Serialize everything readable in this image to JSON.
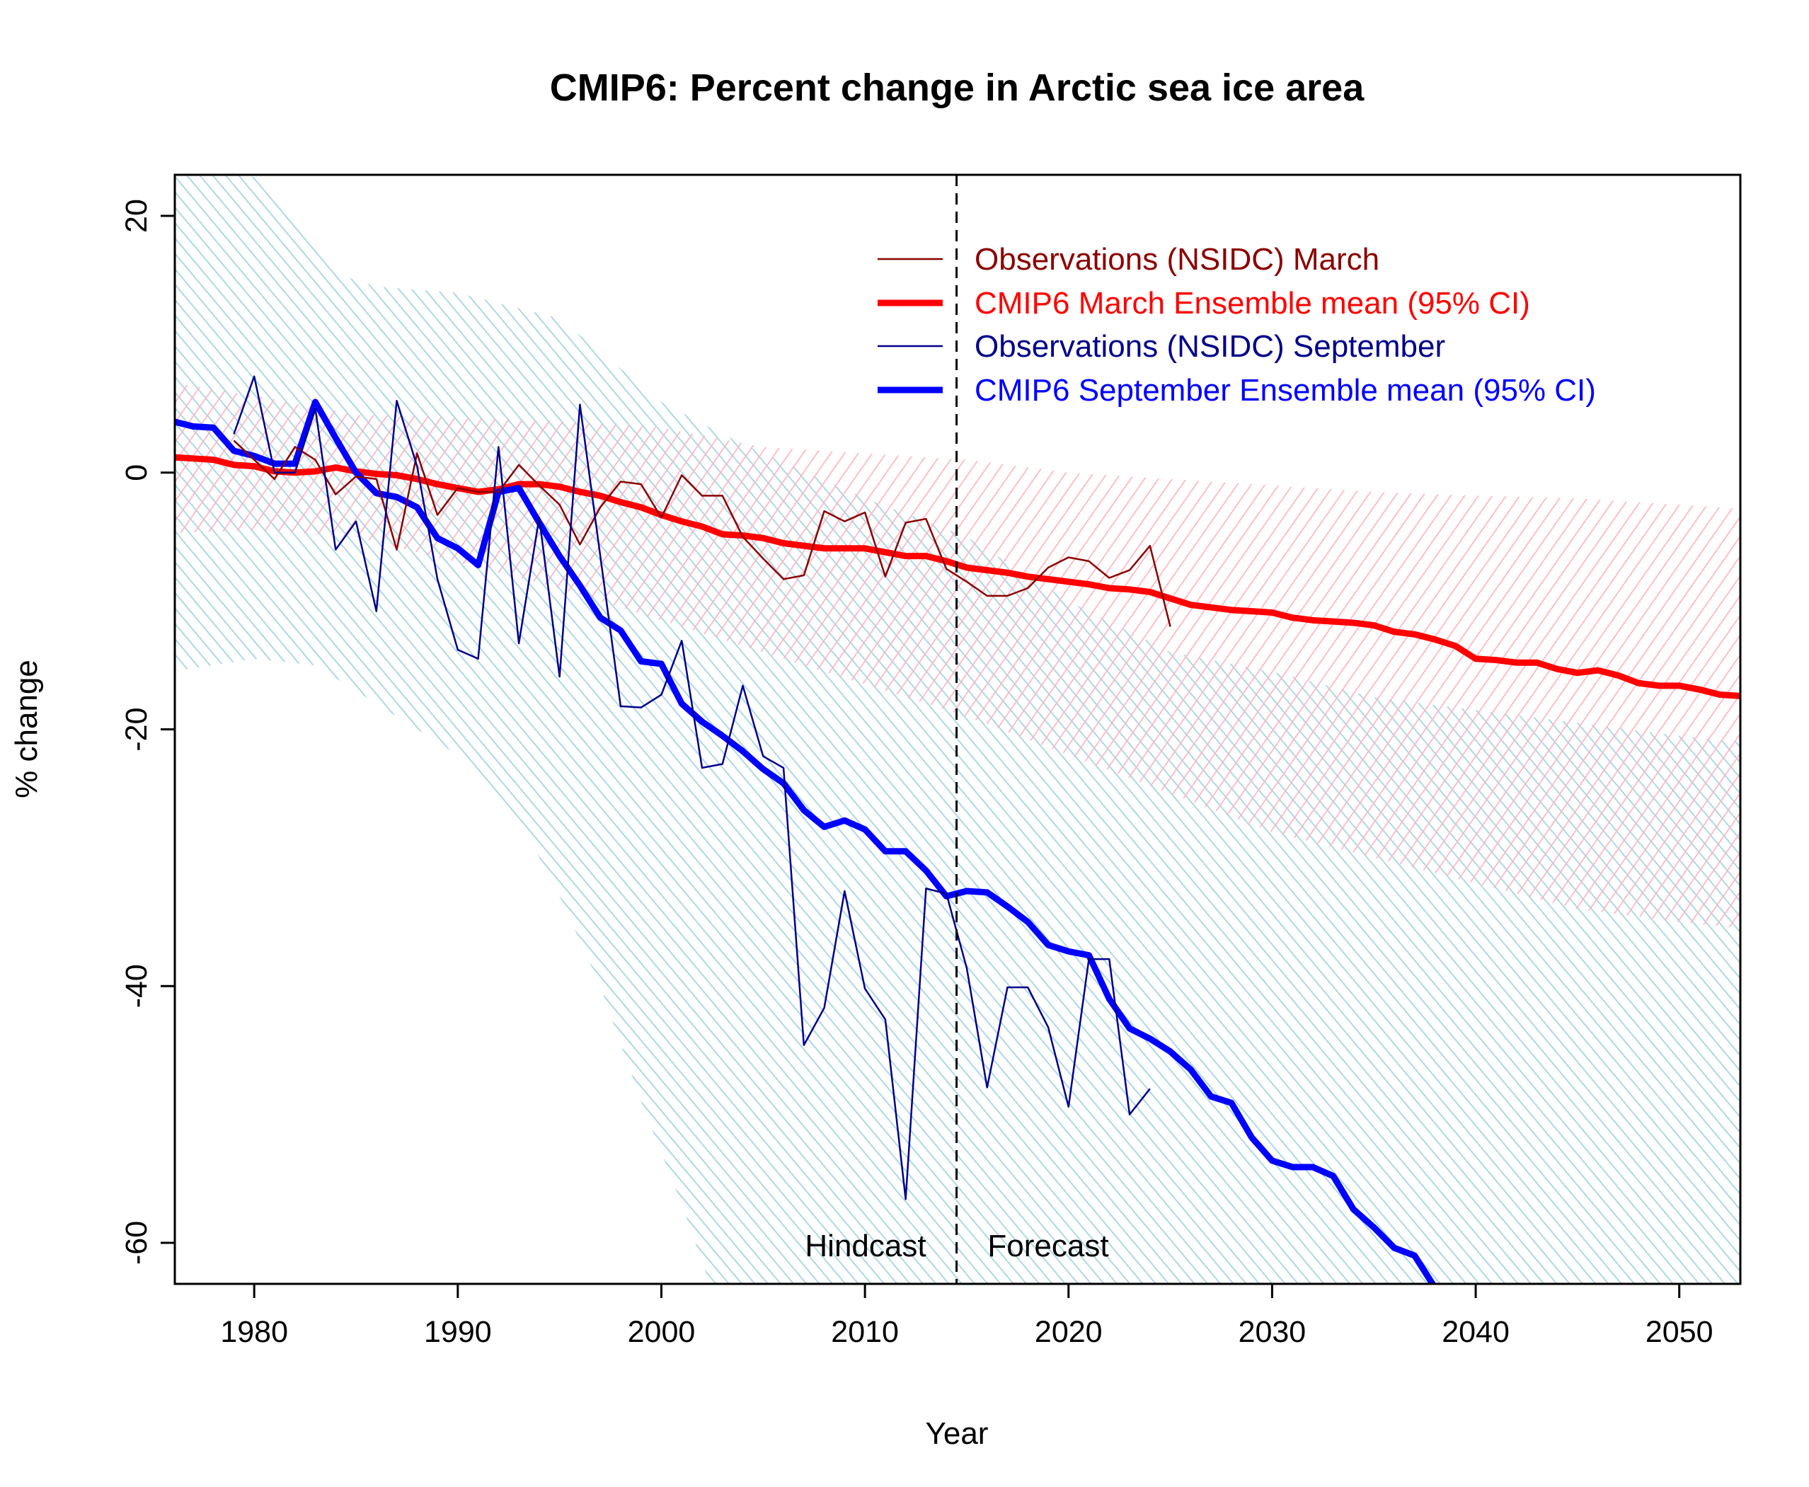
{
  "chart_data": {
    "type": "line",
    "title": "CMIP6: Percent change in Arctic sea ice area",
    "xlabel": "Year",
    "ylabel": "% change",
    "xlim": [
      1976.1,
      2053.0
    ],
    "ylim": [
      -63.2,
      23.2
    ],
    "x_ticks": [
      1980,
      1990,
      2000,
      2010,
      2020,
      2030,
      2040,
      2050
    ],
    "y_ticks": [
      -60,
      -40,
      -20,
      0,
      20
    ],
    "grid": false,
    "legend_position": "top-right",
    "divider": {
      "x": 2014.5,
      "style": "dashed",
      "left_label": "Hindcast",
      "right_label": "Forecast"
    },
    "colors": {
      "obs_march": "#8b0000",
      "cmip_march": "#ff0000",
      "obs_sep": "#00008b",
      "cmip_sep": "#0000ff",
      "ci_march": "#ffb6c1",
      "ci_sep": "#add8e6"
    },
    "series": [
      {
        "name": "Observations (NSIDC) March",
        "color": "#8b0000",
        "width": "thin",
        "start": 1979,
        "values": [
          2.5,
          1,
          -0.5,
          2,
          1,
          -1.7,
          -0.3,
          -0.5,
          -6,
          1.5,
          -3.3,
          -1.2,
          -1.5,
          -1.5,
          0.6,
          -1,
          -2.5,
          -5.6,
          -2.7,
          -0.7,
          -0.9,
          -3.5,
          -0.2,
          -1.8,
          -1.8,
          -5,
          -6.7,
          -8.3,
          -8,
          -3,
          -3.8,
          -3.1,
          -8.1,
          -3.9,
          -3.6,
          -7.5,
          -8.5,
          -9.6,
          -9.6,
          -9,
          -7.4,
          -6.6,
          -6.9,
          -8.2,
          -7.6,
          -5.7,
          -12
        ]
      },
      {
        "name": "CMIP6 March Ensemble mean (95% CI)",
        "color": "#ff0000",
        "width": "thick",
        "start": 1976,
        "values": [
          1.2,
          1.1,
          1.0,
          0.6,
          0.5,
          0.1,
          0,
          0.1,
          0.4,
          0.1,
          -0.1,
          -0.2,
          -0.5,
          -0.9,
          -1.2,
          -1.5,
          -1.3,
          -0.9,
          -0.9,
          -1.1,
          -1.5,
          -1.8,
          -2.3,
          -2.7,
          -3.3,
          -3.8,
          -4.2,
          -4.8,
          -4.9,
          -5.1,
          -5.5,
          -5.7,
          -5.9,
          -5.9,
          -5.9,
          -6.2,
          -6.5,
          -6.5,
          -6.9,
          -7.4,
          -7.6,
          -7.8,
          -8.1,
          -8.3,
          -8.5,
          -8.7,
          -9.0,
          -9.1,
          -9.3,
          -9.8,
          -10.3,
          -10.5,
          -10.7,
          -10.8,
          -10.9,
          -11.3,
          -11.5,
          -11.6,
          -11.7,
          -11.9,
          -12.4,
          -12.6,
          -13.0,
          -13.5,
          -14.5,
          -14.6,
          -14.8,
          -14.8,
          -15.3,
          -15.6,
          -15.4,
          -15.8,
          -16.4,
          -16.6,
          -16.6,
          -16.9,
          -17.3,
          -17.4
        ],
        "ci_years": [
          1976,
          1980,
          1985,
          1990,
          1995,
          2000,
          2005,
          2010,
          2015,
          2020,
          2025,
          2030,
          2035,
          2040,
          2045,
          2050,
          2053
        ],
        "ci_upper": [
          7,
          6,
          4.5,
          4.3,
          4,
          3.5,
          2,
          1.5,
          1,
          0,
          -0.5,
          -1,
          -1.5,
          -1.8,
          -2,
          -2.5,
          -2.8
        ],
        "ci_lower": [
          -4.7,
          -4.5,
          -5,
          -7,
          -9,
          -11.5,
          -14,
          -16.5,
          -19,
          -22,
          -25,
          -28,
          -30,
          -32,
          -34,
          -35,
          -35.5
        ]
      },
      {
        "name": "Observations (NSIDC) September",
        "color": "#00008b",
        "width": "thin",
        "start": 1979,
        "values": [
          3,
          7.5,
          0,
          0,
          5,
          -6,
          -3.8,
          -10.8,
          5.6,
          0.5,
          -8.3,
          -13.8,
          -14.5,
          2,
          -13.3,
          -3.5,
          -15.9,
          5.3,
          -6.5,
          -18.2,
          -18.3,
          -17.3,
          -13.1,
          -23,
          -22.7,
          -16.6,
          -22.1,
          -23,
          -44.6,
          -41.7,
          -32.6,
          -40.2,
          -42.6,
          -56.6,
          -32.4,
          -32.8,
          -38.6,
          -47.9,
          -40.1,
          -40.1,
          -43.2,
          -49.4,
          -37.9,
          -37.9,
          -50,
          -48
        ]
      },
      {
        "name": "CMIP6 September Ensemble mean (95% CI)",
        "color": "#0000ff",
        "width": "thick",
        "start": 1976,
        "values": [
          4.0,
          3.6,
          3.5,
          1.7,
          1.3,
          0.7,
          0.7,
          5.5,
          2.7,
          0,
          -1.6,
          -1.9,
          -2.7,
          -5.1,
          -5.9,
          -7.2,
          -1.5,
          -1.2,
          -3.9,
          -6.5,
          -8.8,
          -11.3,
          -12.3,
          -14.7,
          -14.9,
          -18,
          -19.4,
          -20.5,
          -21.7,
          -23.1,
          -24.2,
          -26.3,
          -27.6,
          -27.1,
          -27.8,
          -29.5,
          -29.5,
          -31,
          -33,
          -32.6,
          -32.7,
          -33.8,
          -35,
          -36.8,
          -37.3,
          -37.6,
          -41,
          -43.3,
          -44.1,
          -45.1,
          -46.5,
          -48.6,
          -49.1,
          -51.8,
          -53.6,
          -54.1,
          -54.1,
          -54.8,
          -57.4,
          -58.8,
          -60.4,
          -61,
          -63.5,
          -65.5
        ],
        "ci_years": [
          1976,
          1980,
          1984,
          1986,
          1990,
          1995,
          2000,
          2003,
          2005,
          2010,
          2015,
          2020,
          2025,
          2030,
          2035,
          2040,
          2045,
          2050,
          2053
        ],
        "ci_upper": [
          25,
          23,
          15.5,
          14.5,
          14,
          12,
          5.5,
          3,
          1.5,
          -2,
          -5,
          -10,
          -14,
          -15.5,
          -17.5,
          -18.5,
          -19.5,
          -20.5,
          -21
        ],
        "ci_lower_years": [
          1976,
          1980,
          1983,
          1986,
          1990,
          1993,
          1995,
          1997,
          1999,
          2001,
          2003,
          2053
        ],
        "ci_lower": [
          -15.5,
          -14.5,
          -15,
          -18,
          -22,
          -27,
          -33,
          -40,
          -49,
          -57,
          -66,
          -66
        ]
      }
    ]
  }
}
